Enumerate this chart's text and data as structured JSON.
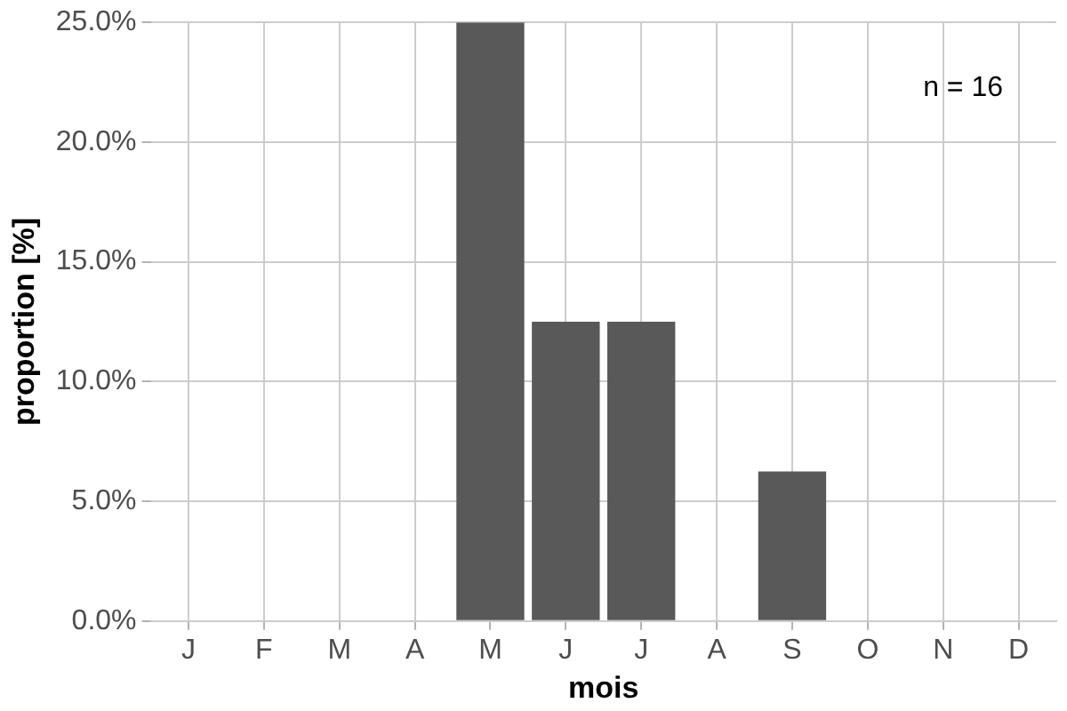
{
  "chart_data": {
    "type": "bar",
    "categories": [
      "J",
      "F",
      "M",
      "A",
      "M",
      "J",
      "J",
      "A",
      "S",
      "O",
      "N",
      "D"
    ],
    "values": [
      0,
      0,
      0,
      0,
      25,
      12.5,
      12.5,
      0,
      6.25,
      0,
      0,
      0
    ],
    "color": "#595959",
    "xlabel": "mois",
    "ylabel": "proportion [%]",
    "ylim": [
      0,
      25
    ],
    "yticks": [
      {
        "value": 0,
        "label": "0.0%"
      },
      {
        "value": 5,
        "label": "5.0%"
      },
      {
        "value": 10,
        "label": "10.0%"
      },
      {
        "value": 15,
        "label": "15.0%"
      },
      {
        "value": 20,
        "label": "20.0%"
      },
      {
        "value": 25,
        "label": "25.0%"
      }
    ],
    "annotations": [
      "n = 16"
    ],
    "grid": true,
    "legend": false
  }
}
